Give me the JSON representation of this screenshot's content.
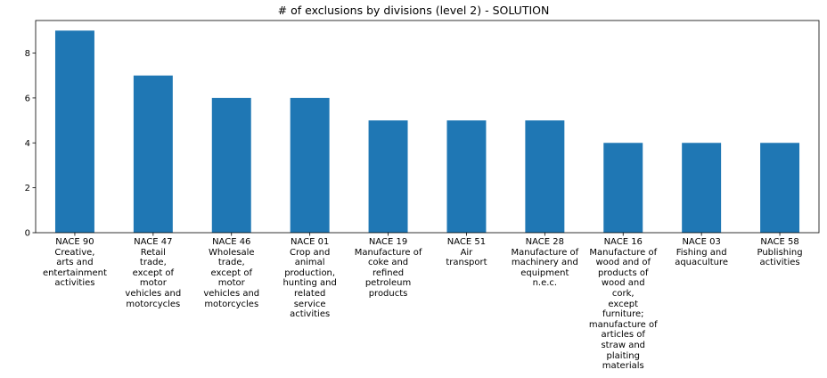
{
  "chart_data": {
    "type": "bar",
    "title": "# of exclusions by divisions (level 2) - SOLUTION",
    "xlabel": "",
    "ylabel": "",
    "ylim": [
      0,
      9.45
    ],
    "yticks": [
      0,
      2,
      4,
      6,
      8
    ],
    "grid": false,
    "legend": "none",
    "bar_color": "#1f77b4",
    "categories": [
      "NACE 90\nCreative,\narts and\nentertainment\nactivities",
      "NACE 47\nRetail\ntrade,\nexcept of\nmotor\nvehicles and\nmotorcycles",
      "NACE 46\nWholesale\ntrade,\nexcept of\nmotor\nvehicles and\nmotorcycles",
      "NACE 01\nCrop and\nanimal\nproduction,\nhunting and\nrelated\nservice\nactivities",
      "NACE 19\nManufacture of\ncoke and\nrefined\npetroleum\nproducts",
      "NACE 51\nAir\ntransport",
      "NACE 28\nManufacture of\nmachinery and\nequipment\nn.e.c.",
      "NACE 16\nManufacture of\nwood and of\nproducts of\nwood and\ncork,\nexcept\nfurniture;\nmanufacture of\narticles of\nstraw and\nplaiting\nmaterials",
      "NACE 03\nFishing and\naquaculture",
      "NACE 58\nPublishing\nactivities"
    ],
    "values": [
      9,
      7,
      6,
      6,
      5,
      5,
      5,
      4,
      4,
      4
    ]
  }
}
